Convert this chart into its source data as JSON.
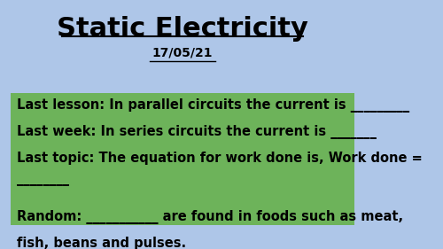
{
  "title": "Static Electricity",
  "date": "17/05/21",
  "bg_color": "#aec6e8",
  "green_box_color": "#6db35a",
  "title_color": "#000000",
  "date_color": "#000000",
  "text_color": "#000000",
  "line1": "Last lesson: In parallel circuits the current is _________",
  "line2": "Last week: In series circuits the current is _______",
  "line3": "Last topic: The equation for work done is, Work done =",
  "line3b": "________",
  "line4": "Random: ___________ are found in foods such as meat,",
  "line4b": "fish, beans and pulses.",
  "figsize": [
    5.0,
    2.81
  ],
  "dpi": 100
}
